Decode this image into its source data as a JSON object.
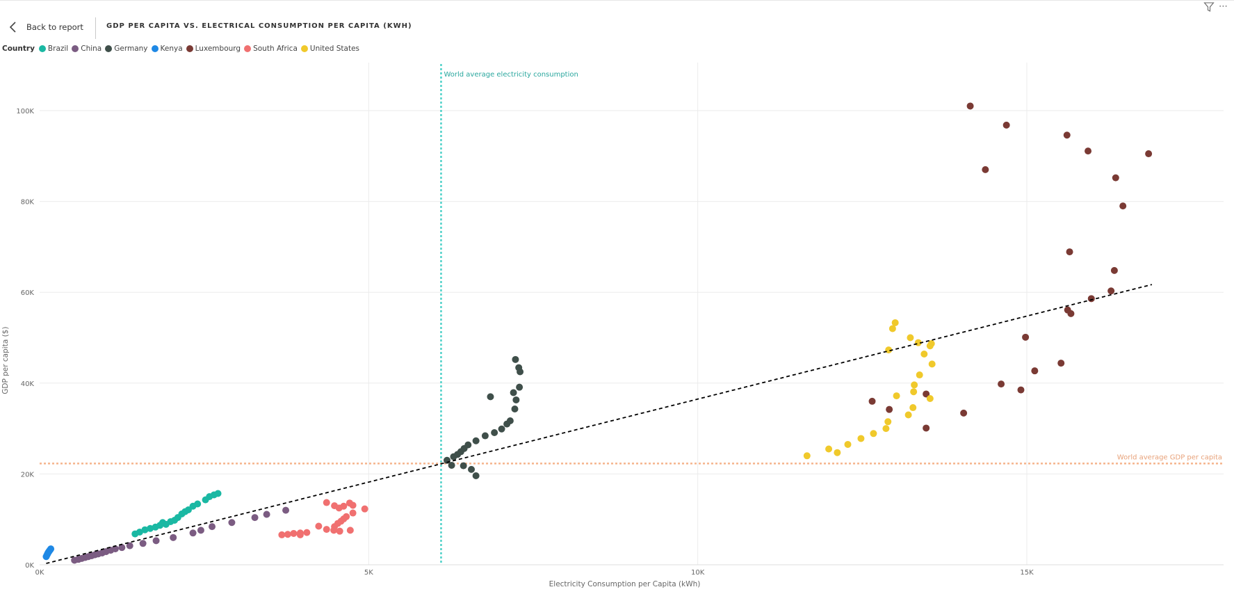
{
  "header": {
    "back_label": "Back to report",
    "title": "GDP PER CAPITA VS. ELECTRICAL CONSUMPTION PER CAPITA (KWH)"
  },
  "icons": {
    "back": "chevron-left-icon",
    "filter": "filter-icon",
    "more": "more-options-icon"
  },
  "legend": {
    "title": "Country",
    "items": [
      {
        "name": "Brazil",
        "color": "#1AB8A3"
      },
      {
        "name": "China",
        "color": "#7B5C82"
      },
      {
        "name": "Germany",
        "color": "#3F4F4A"
      },
      {
        "name": "Kenya",
        "color": "#1E88E5"
      },
      {
        "name": "Luxembourg",
        "color": "#7A3A34"
      },
      {
        "name": "South Africa",
        "color": "#F07070"
      },
      {
        "name": "United States",
        "color": "#F0C92B"
      }
    ]
  },
  "chart_data": {
    "type": "scatter",
    "title": "GDP PER CAPITA VS. ELECTRICAL CONSUMPTION PER CAPITA (KWH)",
    "xlabel": "Electricity Consumption per Capita (kWh)",
    "ylabel": "GDP per capita ($)",
    "xlim": [
      0,
      18000
    ],
    "ylim": [
      0,
      110000
    ],
    "x_ticks": [
      0,
      5000,
      10000,
      15000
    ],
    "x_tick_labels": [
      "0K",
      "5K",
      "10K",
      "15K"
    ],
    "y_ticks": [
      0,
      20000,
      40000,
      60000,
      80000,
      100000
    ],
    "y_tick_labels": [
      "0K",
      "20K",
      "40K",
      "60K",
      "80K",
      "100K"
    ],
    "grid": true,
    "legend_position": "top-left",
    "reference_lines": [
      {
        "label": "World average electricity consumption",
        "axis": "x",
        "value": 6100,
        "color": "#4FD1C9"
      },
      {
        "label": "World average GDP per capita",
        "axis": "y",
        "value": 22300,
        "color": "#F5B48C"
      }
    ],
    "trend_line": {
      "x": [
        100,
        16900
      ],
      "y": [
        300,
        61700
      ],
      "color": "#000000",
      "style": "dashed"
    },
    "series": [
      {
        "name": "Brazil",
        "color": "#1AB8A3",
        "points": [
          [
            1450,
            6800
          ],
          [
            1520,
            7200
          ],
          [
            1600,
            7700
          ],
          [
            1680,
            8000
          ],
          [
            1760,
            8300
          ],
          [
            1830,
            8700
          ],
          [
            1870,
            9300
          ],
          [
            1920,
            8900
          ],
          [
            1990,
            9500
          ],
          [
            2050,
            9800
          ],
          [
            2100,
            10400
          ],
          [
            2160,
            11200
          ],
          [
            2210,
            11700
          ],
          [
            2260,
            12100
          ],
          [
            2330,
            12900
          ],
          [
            2400,
            13400
          ],
          [
            2520,
            14300
          ],
          [
            2580,
            15000
          ],
          [
            2650,
            15400
          ],
          [
            2710,
            15700
          ]
        ]
      },
      {
        "name": "China",
        "color": "#7B5C82",
        "points": [
          [
            530,
            1000
          ],
          [
            590,
            1200
          ],
          [
            640,
            1400
          ],
          [
            690,
            1600
          ],
          [
            740,
            1800
          ],
          [
            790,
            2000
          ],
          [
            840,
            2200
          ],
          [
            890,
            2400
          ],
          [
            950,
            2600
          ],
          [
            1010,
            2900
          ],
          [
            1080,
            3200
          ],
          [
            1150,
            3500
          ],
          [
            1250,
            3800
          ],
          [
            1370,
            4200
          ],
          [
            1570,
            4700
          ],
          [
            1770,
            5300
          ],
          [
            2030,
            6000
          ],
          [
            2330,
            7000
          ],
          [
            2450,
            7600
          ],
          [
            2620,
            8400
          ],
          [
            2920,
            9300
          ],
          [
            3270,
            10400
          ],
          [
            3450,
            11100
          ],
          [
            3740,
            12000
          ]
        ]
      },
      {
        "name": "Germany",
        "color": "#3F4F4A",
        "points": [
          [
            6190,
            23000
          ],
          [
            6290,
            23800
          ],
          [
            6350,
            24300
          ],
          [
            6400,
            24900
          ],
          [
            6450,
            25600
          ],
          [
            6510,
            26400
          ],
          [
            6630,
            27300
          ],
          [
            6770,
            28400
          ],
          [
            6910,
            29100
          ],
          [
            7020,
            29900
          ],
          [
            7100,
            31000
          ],
          [
            7150,
            31700
          ],
          [
            7220,
            34300
          ],
          [
            7240,
            36300
          ],
          [
            7200,
            37900
          ],
          [
            7290,
            39100
          ],
          [
            6850,
            37000
          ],
          [
            7230,
            45200
          ],
          [
            7280,
            43400
          ],
          [
            7300,
            42500
          ],
          [
            6260,
            21900
          ],
          [
            6440,
            21800
          ],
          [
            6560,
            21000
          ],
          [
            6630,
            19600
          ]
        ]
      },
      {
        "name": "Kenya",
        "color": "#1E88E5",
        "points": [
          [
            100,
            1800
          ],
          [
            110,
            2100
          ],
          [
            120,
            2400
          ],
          [
            130,
            2700
          ],
          [
            140,
            2900
          ],
          [
            150,
            3100
          ],
          [
            160,
            3300
          ],
          [
            170,
            3500
          ]
        ]
      },
      {
        "name": "Luxembourg",
        "color": "#7A3A34",
        "points": [
          [
            14140,
            101000
          ],
          [
            14690,
            96800
          ],
          [
            14370,
            87000
          ],
          [
            15610,
            94600
          ],
          [
            15930,
            91100
          ],
          [
            16350,
            85200
          ],
          [
            16850,
            90500
          ],
          [
            16460,
            79000
          ],
          [
            15650,
            68900
          ],
          [
            16330,
            64800
          ],
          [
            16280,
            60300
          ],
          [
            15980,
            58600
          ],
          [
            15620,
            56100
          ],
          [
            15670,
            55300
          ],
          [
            14980,
            50100
          ],
          [
            15520,
            44400
          ],
          [
            15120,
            42700
          ],
          [
            14610,
            39800
          ],
          [
            14910,
            38500
          ],
          [
            13470,
            37600
          ],
          [
            14040,
            33400
          ],
          [
            12650,
            36000
          ],
          [
            12910,
            34200
          ],
          [
            13470,
            30100
          ]
        ]
      },
      {
        "name": "South Africa",
        "color": "#F07070",
        "points": [
          [
            3680,
            6600
          ],
          [
            3770,
            6700
          ],
          [
            3860,
            6900
          ],
          [
            3960,
            7000
          ],
          [
            4060,
            7100
          ],
          [
            4240,
            8500
          ],
          [
            4360,
            7800
          ],
          [
            4480,
            8400
          ],
          [
            4530,
            9100
          ],
          [
            4580,
            9600
          ],
          [
            4620,
            10100
          ],
          [
            4660,
            10600
          ],
          [
            4760,
            11400
          ],
          [
            4940,
            12300
          ],
          [
            4360,
            13700
          ],
          [
            4480,
            13000
          ],
          [
            4550,
            12500
          ],
          [
            4620,
            12900
          ],
          [
            4710,
            13600
          ],
          [
            4760,
            13100
          ],
          [
            4470,
            7600
          ],
          [
            4560,
            7400
          ],
          [
            4720,
            7600
          ],
          [
            3960,
            6600
          ]
        ]
      },
      {
        "name": "United States",
        "color": "#F0C92B",
        "points": [
          [
            11660,
            24000
          ],
          [
            11990,
            25500
          ],
          [
            12120,
            24700
          ],
          [
            12280,
            26500
          ],
          [
            12480,
            27800
          ],
          [
            12670,
            28900
          ],
          [
            12860,
            30000
          ],
          [
            12890,
            31500
          ],
          [
            13020,
            37200
          ],
          [
            13200,
            33000
          ],
          [
            13270,
            34600
          ],
          [
            13280,
            38100
          ],
          [
            13290,
            39600
          ],
          [
            13370,
            41800
          ],
          [
            13560,
            44200
          ],
          [
            13530,
            36600
          ],
          [
            13440,
            46400
          ],
          [
            13530,
            48200
          ],
          [
            13550,
            48700
          ],
          [
            13350,
            48900
          ],
          [
            13230,
            50000
          ],
          [
            12900,
            47300
          ],
          [
            12960,
            52000
          ],
          [
            13000,
            53300
          ]
        ]
      }
    ]
  }
}
